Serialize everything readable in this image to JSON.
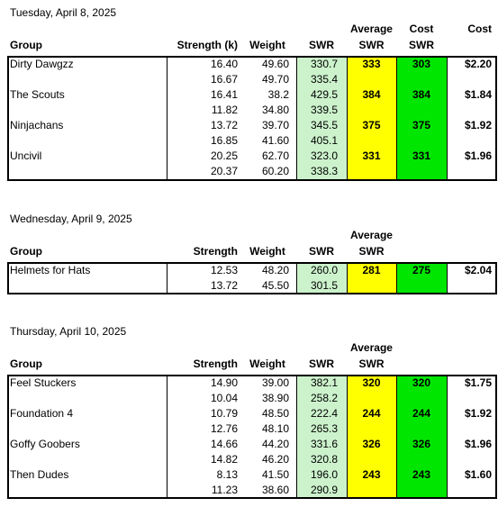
{
  "colors": {
    "swr": "#ccf2cc",
    "average": "#ffff00",
    "cost": "#00e600"
  },
  "sections": [
    {
      "date": "Tuesday, April 8, 2025",
      "headers": {
        "group": "Group",
        "strength": "Strength (k)",
        "weight": "Weight",
        "swr": "SWR",
        "avg_top": "Average",
        "avg_bottom": "SWR",
        "cost_swr_top": "Cost",
        "cost_swr_bottom": "SWR",
        "cost": "Cost"
      },
      "groups": [
        {
          "name": "Dirty Dawgzz",
          "rows": [
            [
              "16.40",
              "49.60",
              "330.7"
            ],
            [
              "16.67",
              "49.70",
              "335.4"
            ]
          ],
          "average": "333",
          "cost_swr": "303",
          "cost": "$2.20"
        },
        {
          "name": "The Scouts",
          "rows": [
            [
              "16.41",
              "38.2",
              "429.5"
            ],
            [
              "11.82",
              "34.80",
              "339.5"
            ]
          ],
          "average": "384",
          "cost_swr": "384",
          "cost": "$1.84"
        },
        {
          "name": "Ninjachans",
          "rows": [
            [
              "13.72",
              "39.70",
              "345.5"
            ],
            [
              "16.85",
              "41.60",
              "405.1"
            ]
          ],
          "average": "375",
          "cost_swr": "375",
          "cost": "$1.92"
        },
        {
          "name": "Uncivil",
          "rows": [
            [
              "20.25",
              "62.70",
              "323.0"
            ],
            [
              "20.37",
              "60.20",
              "338.3"
            ]
          ],
          "average": "331",
          "cost_swr": "331",
          "cost": "$1.96"
        }
      ]
    },
    {
      "date": "Wednesday, April 9, 2025",
      "headers": {
        "group": "Group",
        "strength": "Strength",
        "weight": "Weight",
        "swr": "SWR",
        "avg_top": "Average",
        "avg_bottom": "SWR"
      },
      "groups": [
        {
          "name": "Helmets for Hats",
          "rows": [
            [
              "12.53",
              "48.20",
              "260.0"
            ],
            [
              "13.72",
              "45.50",
              "301.5"
            ]
          ],
          "average": "281",
          "cost_swr": "275",
          "cost": "$2.04"
        }
      ]
    },
    {
      "date": "Thursday, April 10, 2025",
      "headers": {
        "group": "Group",
        "strength": "Strength",
        "weight": "Weight",
        "swr": "SWR",
        "avg_top": "Average",
        "avg_bottom": "SWR"
      },
      "groups": [
        {
          "name": "Feel Stuckers",
          "rows": [
            [
              "14.90",
              "39.00",
              "382.1"
            ],
            [
              "10.04",
              "38.90",
              "258.2"
            ]
          ],
          "average": "320",
          "cost_swr": "320",
          "cost": "$1.75"
        },
        {
          "name": "Foundation 4",
          "rows": [
            [
              "10.79",
              "48.50",
              "222.4"
            ],
            [
              "12.76",
              "48.10",
              "265.3"
            ]
          ],
          "average": "244",
          "cost_swr": "244",
          "cost": "$1.92"
        },
        {
          "name": "Goffy Goobers",
          "rows": [
            [
              "14.66",
              "44.20",
              "331.6"
            ],
            [
              "14.82",
              "46.20",
              "320.8"
            ]
          ],
          "average": "326",
          "cost_swr": "326",
          "cost": "$1.96"
        },
        {
          "name": "Then Dudes",
          "rows": [
            [
              "8.13",
              "41.50",
              "196.0"
            ],
            [
              "11.23",
              "38.60",
              "290.9"
            ]
          ],
          "average": "243",
          "cost_swr": "243",
          "cost": "$1.60"
        }
      ]
    }
  ]
}
